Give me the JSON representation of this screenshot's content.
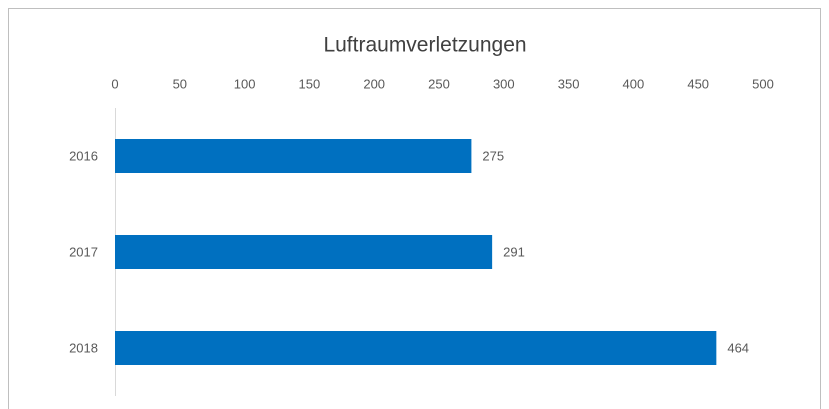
{
  "chart_data": {
    "type": "bar",
    "orientation": "horizontal",
    "title": "Luftraumverletzungen",
    "categories": [
      "2016",
      "2017",
      "2018"
    ],
    "values": [
      275,
      291,
      464
    ],
    "color": "#0070c0",
    "xlim": [
      0,
      500
    ],
    "xticks": [
      0,
      50,
      100,
      150,
      200,
      250,
      300,
      350,
      400,
      450,
      500
    ],
    "grid": false
  }
}
